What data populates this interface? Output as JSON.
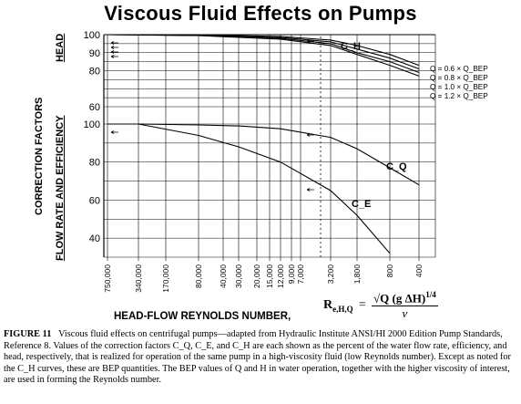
{
  "title": "Viscous Fluid Effects on Pumps",
  "yaxis": {
    "main_label": "CORRECTION FACTORS",
    "head_label": "HEAD",
    "flow_label": "FLOW RATE AND EFFICIENCY"
  },
  "xaxis": {
    "label": "HEAD-FLOW REYNOLDS NUMBER,",
    "tick_labels": [
      "750,000",
      "340,000",
      "170,000",
      "80,000",
      "40,000",
      "30,000",
      "20,000",
      "15,000",
      "12,000",
      "9,000",
      "7,000",
      "3,200",
      "1,800",
      "800",
      "400"
    ]
  },
  "formula": {
    "lhs": "R",
    "lhs_sub": "e,H,Q",
    "eq": "=",
    "numerator": "√Q (g ΔH)",
    "exponent": "1/4",
    "denominator": "ν"
  },
  "caption": {
    "figure_label": "FIGURE 11",
    "text": "Viscous fluid effects on centrifugal pumps—adapted from Hydraulic Institute ANSI/HI 2000 Edition Pump Standards, Reference 8. Values of the correction factors C_Q, C_E, and C_H are each shown as the percent of the water flow rate, efficiency, and head, respectively, that is realized for operation of the same pump in a high-viscosity fluid (low Reynolds number). Except as noted for the C_H curves, these are BEP quantities. The BEP values of Q and H in water operation, together with the higher viscosity of interest, are used in forming the Reynolds number."
  },
  "chart_data": [
    {
      "type": "line",
      "panel": "head",
      "yticks": [
        60,
        80,
        90,
        100
      ],
      "ylim": [
        60,
        100
      ],
      "curve_label": "C_H",
      "legend": [
        "Q = 0.6 × Q_BEP",
        "Q = 0.8 × Q_BEP",
        "Q = 1.0 × Q_BEP",
        "Q = 1.2 × Q_BEP"
      ],
      "series": [
        {
          "name": "Q = 0.6 × Q_BEP",
          "x_ticks_index": [
            0,
            3,
            5,
            8,
            11,
            12,
            13,
            14
          ],
          "values": [
            100,
            100,
            99.5,
            99,
            97,
            94,
            89,
            83
          ]
        },
        {
          "name": "Q = 0.8 × Q_BEP",
          "x_ticks_index": [
            0,
            3,
            5,
            8,
            11,
            12,
            13,
            14
          ],
          "values": [
            100,
            100,
            99,
            98.5,
            96,
            92,
            87,
            81
          ]
        },
        {
          "name": "Q = 1.0 × Q_BEP",
          "x_ticks_index": [
            0,
            3,
            5,
            8,
            11,
            12,
            13,
            14
          ],
          "values": [
            100,
            99.5,
            99,
            98,
            95,
            90,
            85,
            79
          ]
        },
        {
          "name": "Q = 1.2 × Q_BEP",
          "x_ticks_index": [
            0,
            3,
            5,
            8,
            11,
            12,
            13,
            14
          ],
          "values": [
            100,
            99.5,
            98.5,
            97.5,
            94,
            89,
            83,
            77
          ]
        }
      ]
    },
    {
      "type": "line",
      "panel": "flow-efficiency",
      "yticks": [
        40,
        60,
        80,
        100
      ],
      "ylim": [
        30,
        100
      ],
      "series": [
        {
          "name": "C_Q",
          "x_ticks_index": [
            0,
            1,
            3,
            5,
            8,
            11,
            12,
            13,
            14
          ],
          "values": [
            100,
            100,
            99.5,
            99,
            97.5,
            93,
            87,
            77,
            68
          ]
        },
        {
          "name": "C_E",
          "x_ticks_index": [
            1,
            3,
            5,
            8,
            11,
            12,
            13
          ],
          "values": [
            100,
            94,
            88,
            80,
            65,
            52,
            32
          ]
        }
      ],
      "curve_labels": [
        "C_Q",
        "C_E"
      ]
    }
  ]
}
